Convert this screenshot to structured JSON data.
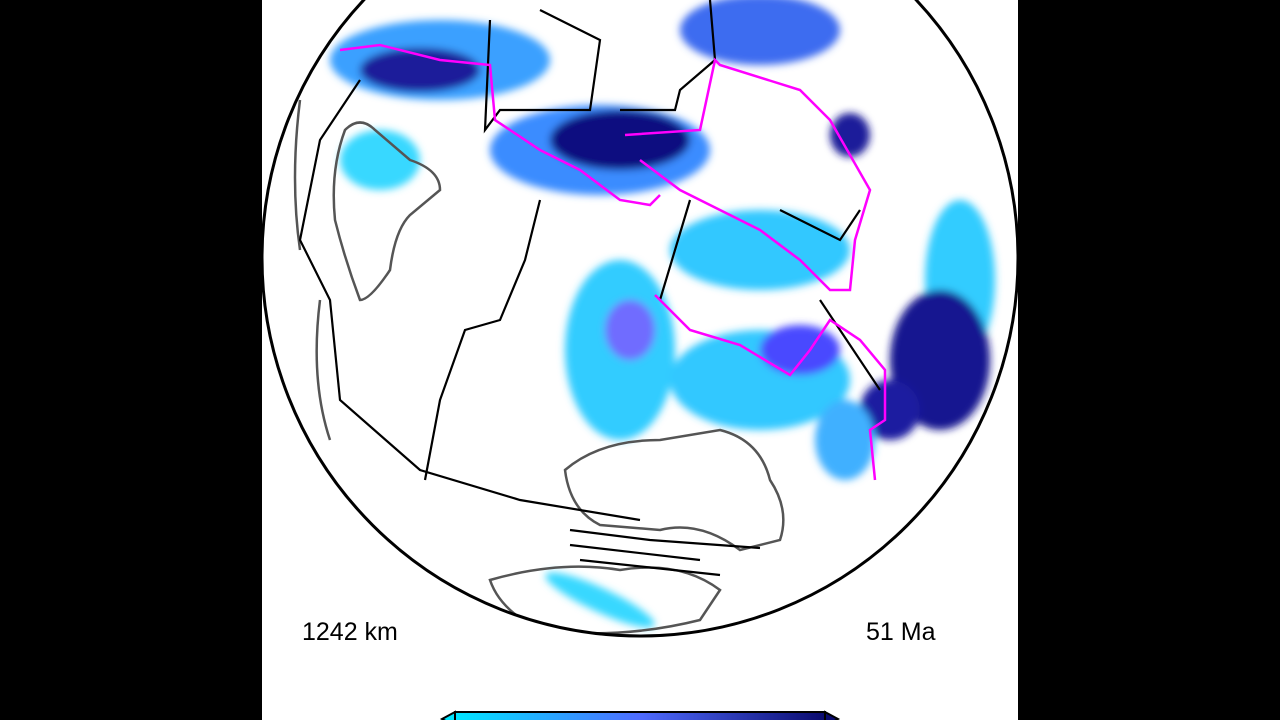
{
  "labels": {
    "depth": "1242 km",
    "age": "51 Ma"
  }
}
